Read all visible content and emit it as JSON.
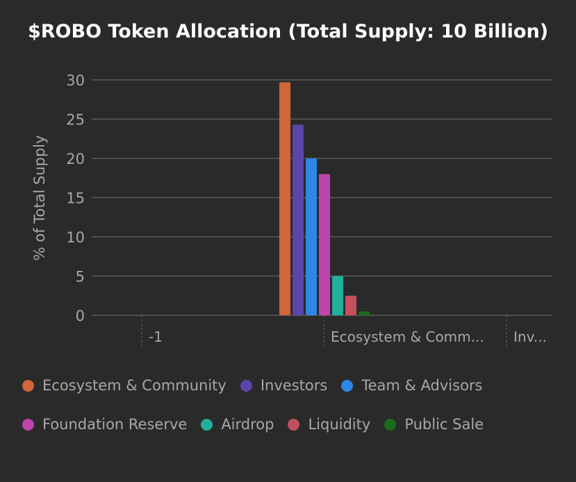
{
  "chart_data": {
    "type": "bar",
    "title": "$ROBO Token Allocation (Total Supply: 10 Billion)",
    "ylabel": "% of Total Supply",
    "xlabel": "",
    "ylim": [
      0,
      30
    ],
    "yticks": [
      0,
      5,
      10,
      15,
      20,
      25,
      30
    ],
    "xticks": [
      "-1",
      "Ecosystem & Comm...",
      "Inv..."
    ],
    "grid": true,
    "legend_position": "bottom",
    "series": [
      {
        "name": "Ecosystem & Community",
        "values": [
          29.7
        ],
        "color": "#d0663a"
      },
      {
        "name": "Investors",
        "values": [
          24.3
        ],
        "color": "#5b46a8"
      },
      {
        "name": "Team & Advisors",
        "values": [
          20
        ],
        "color": "#2e86e6"
      },
      {
        "name": "Foundation Reserve",
        "values": [
          18
        ],
        "color": "#bf44ae"
      },
      {
        "name": "Airdrop",
        "values": [
          5
        ],
        "color": "#23b09b"
      },
      {
        "name": "Liquidity",
        "values": [
          2.5
        ],
        "color": "#c3505e"
      },
      {
        "name": "Public Sale",
        "values": [
          0.5
        ],
        "color": "#1a6b1a"
      }
    ]
  }
}
